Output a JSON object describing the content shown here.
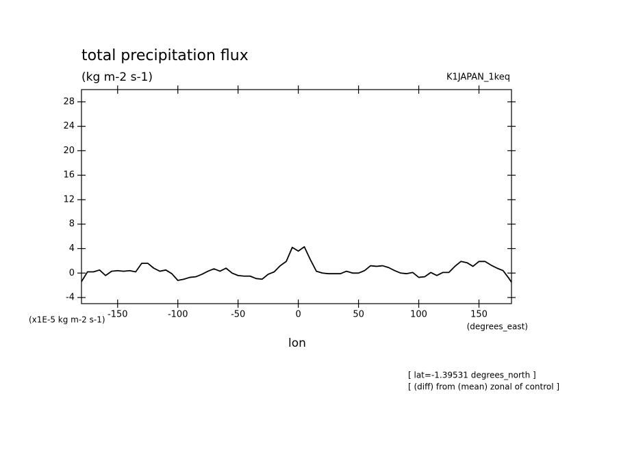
{
  "chart_data": {
    "type": "line",
    "title": "total precipitation flux",
    "subtitle": "(kg m-2 s-1)",
    "experiment": "K1JAPAN_1keq",
    "y_axis_label": "(x1E-5 kg m-2 s-1)",
    "x_axis_units": "(degrees_east)",
    "x_axis_label": "lon",
    "notes": [
      "[ lat=-1.39531 degrees_north ]",
      "[ (diff) from (mean) zonal of control ]"
    ],
    "xlim": [
      -180,
      177
    ],
    "ylim": [
      -5,
      30
    ],
    "xticks": [
      -150,
      -100,
      -50,
      0,
      50,
      100,
      150
    ],
    "yticks": [
      -4,
      0,
      4,
      8,
      12,
      16,
      20,
      24,
      28
    ],
    "color": "#000000",
    "x": [
      -180,
      -175,
      -170,
      -165,
      -160,
      -155,
      -150,
      -145,
      -140,
      -135,
      -130,
      -125,
      -120,
      -115,
      -110,
      -105,
      -100,
      -95,
      -90,
      -85,
      -80,
      -75,
      -70,
      -65,
      -60,
      -55,
      -50,
      -45,
      -40,
      -35,
      -30,
      -25,
      -20,
      -15,
      -10,
      -5,
      0,
      5,
      10,
      15,
      20,
      25,
      30,
      35,
      40,
      45,
      50,
      55,
      60,
      65,
      70,
      75,
      80,
      85,
      90,
      95,
      100,
      105,
      110,
      115,
      120,
      125,
      130,
      135,
      140,
      145,
      150,
      155,
      160,
      165,
      170,
      175,
      177
    ],
    "values": [
      -1.4,
      0.2,
      0.2,
      0.5,
      -0.4,
      0.3,
      0.4,
      0.3,
      0.4,
      0.2,
      1.6,
      1.6,
      0.8,
      0.3,
      0.5,
      -0.1,
      -1.2,
      -1.0,
      -0.7,
      -0.6,
      -0.2,
      0.3,
      0.7,
      0.3,
      0.8,
      0.0,
      -0.4,
      -0.5,
      -0.5,
      -0.9,
      -1.0,
      -0.2,
      0.2,
      1.2,
      1.9,
      4.2,
      3.6,
      4.3,
      2.2,
      0.3,
      0.0,
      -0.1,
      -0.1,
      -0.1,
      0.3,
      0.0,
      0.0,
      0.4,
      1.2,
      1.1,
      1.2,
      0.9,
      0.4,
      0.0,
      -0.1,
      0.1,
      -0.7,
      -0.6,
      0.1,
      -0.4,
      0.1,
      0.1,
      1.1,
      1.9,
      1.7,
      1.1,
      1.9,
      1.9,
      1.3,
      0.8,
      0.4,
      -0.9,
      -1.5
    ]
  }
}
